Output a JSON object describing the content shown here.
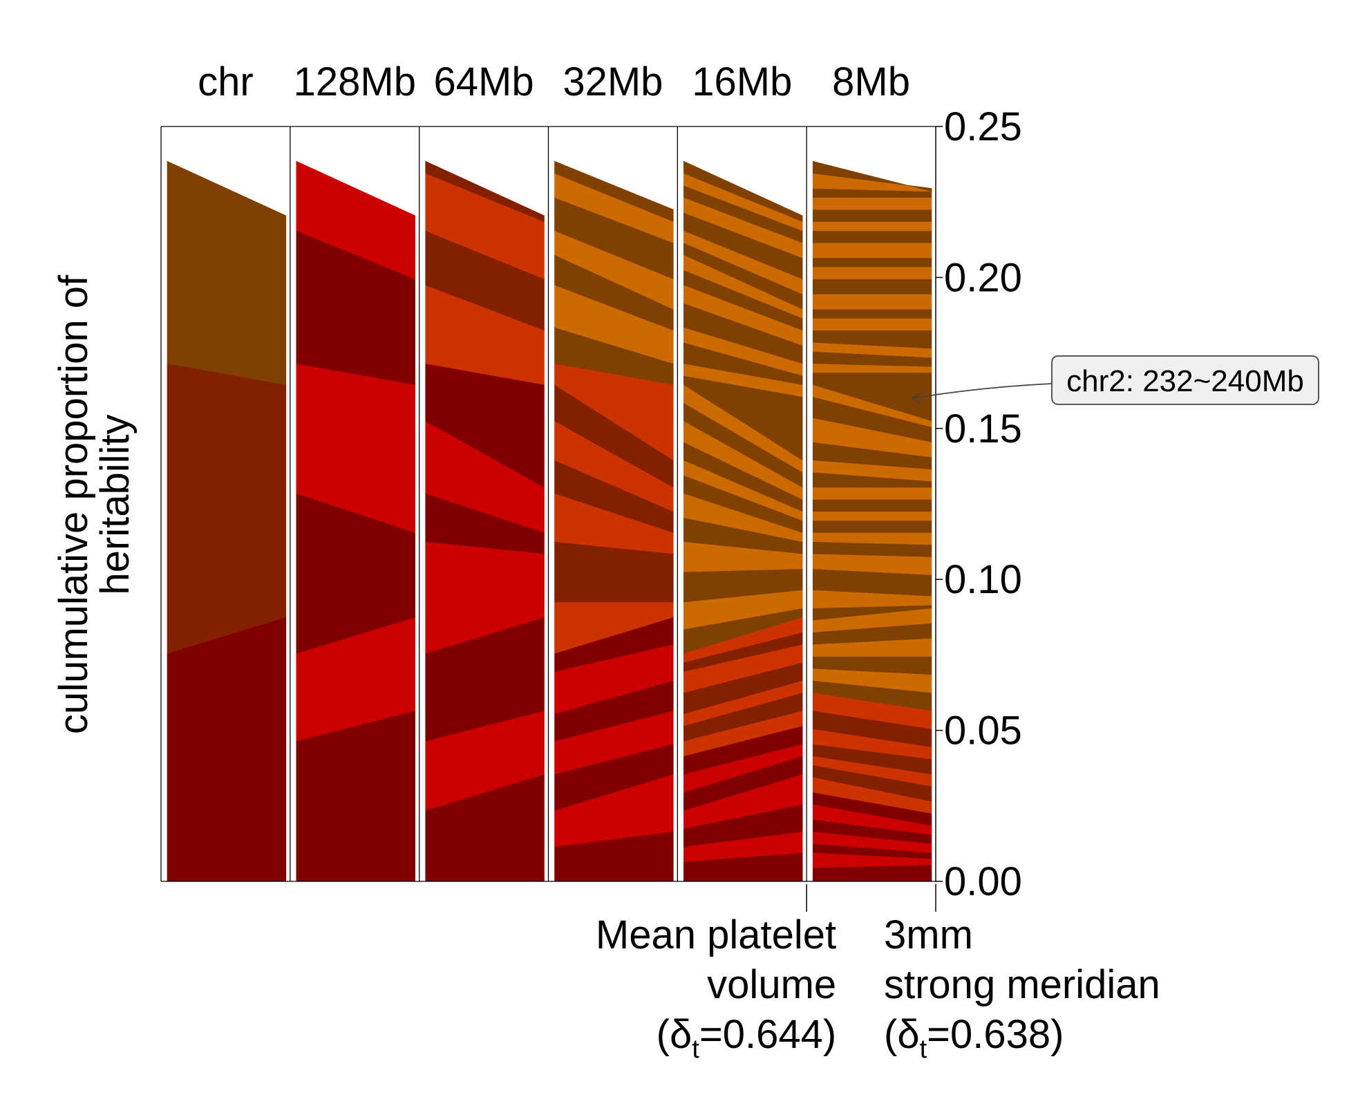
{
  "chart_data": {
    "type": "area",
    "title": "",
    "ylabel_lines": [
      "culumulative proportion of",
      "heritability"
    ],
    "columns": [
      "chr",
      "128Mb",
      "64Mb",
      "32Mb",
      "16Mb",
      "8Mb"
    ],
    "yticks": [
      "0.00",
      "0.05",
      "0.10",
      "0.15",
      "0.20",
      "0.25"
    ],
    "ylim": [
      0,
      0.25
    ],
    "colors": {
      "red_dark": "#800000",
      "red_light": "#cc0000",
      "rust_dark": "#832000",
      "rust_light": "#cc3300",
      "brown_dark": "#804000",
      "orange_light": "#cc6a00"
    },
    "traits": [
      {
        "name": "Mean platelet volume",
        "lines": [
          "Mean platelet",
          "volume"
        ],
        "delta_prefix": "(δ",
        "delta_sub": "t",
        "delta_suffix": "=0.644)"
      },
      {
        "name": "3mm strong meridian",
        "lines": [
          "3mm",
          "strong meridian"
        ],
        "delta_prefix": "(δ",
        "delta_sub": "t",
        "delta_suffix": "=0.638)"
      }
    ],
    "annotation": {
      "text": "chr2: 232~240Mb",
      "value": 0.16
    },
    "boundaries": [
      [
        [
          0.0755,
          0.0875
        ],
        [
          0.1715,
          0.1645
        ],
        [
          0.2385,
          0.2205
        ]
      ],
      [
        [
          0.0465,
          0.0565
        ],
        [
          0.0755,
          0.0875
        ],
        [
          0.1285,
          0.1155
        ],
        [
          0.1715,
          0.1645
        ],
        [
          0.2155,
          0.1995
        ],
        [
          0.2385,
          0.2205
        ]
      ],
      [
        [
          0.0235,
          0.0355
        ],
        [
          0.0465,
          0.0565
        ],
        [
          0.0755,
          0.0875
        ],
        [
          0.1125,
          0.1085
        ],
        [
          0.1285,
          0.1155
        ],
        [
          0.1525,
          0.1305
        ],
        [
          0.1715,
          0.1645
        ],
        [
          0.1975,
          0.1825
        ],
        [
          0.2155,
          0.1995
        ],
        [
          0.2345,
          0.2185
        ],
        [
          0.2385,
          0.2205
        ]
      ],
      [
        [
          0.0115,
          0.0165
        ],
        [
          0.0235,
          0.0355
        ],
        [
          0.0355,
          0.0455
        ],
        [
          0.0465,
          0.0565
        ],
        [
          0.0555,
          0.0665
        ],
        [
          0.0695,
          0.0785
        ],
        [
          0.0755,
          0.0875
        ],
        [
          0.0925,
          0.0925
        ],
        [
          0.1125,
          0.1085
        ],
        [
          0.1285,
          0.1155
        ],
        [
          0.1395,
          0.1225
        ],
        [
          0.1525,
          0.1305
        ],
        [
          0.1645,
          0.1395
        ],
        [
          0.1715,
          0.1645
        ],
        [
          0.1835,
          0.1715
        ],
        [
          0.1975,
          0.1825
        ],
        [
          0.2075,
          0.1895
        ],
        [
          0.2155,
          0.1995
        ],
        [
          0.2265,
          0.2115
        ],
        [
          0.2345,
          0.2185
        ],
        [
          0.2385,
          0.2225
        ]
      ],
      [
        [
          0.0065,
          0.0095
        ],
        [
          0.0115,
          0.0165
        ],
        [
          0.0175,
          0.0255
        ],
        [
          0.0235,
          0.0355
        ],
        [
          0.0295,
          0.0415
        ],
        [
          0.0355,
          0.0455
        ],
        [
          0.0415,
          0.0515
        ],
        [
          0.0465,
          0.0565
        ],
        [
          0.0515,
          0.0625
        ],
        [
          0.0555,
          0.0665
        ],
        [
          0.0625,
          0.0725
        ],
        [
          0.0695,
          0.0785
        ],
        [
          0.0725,
          0.0825
        ],
        [
          0.0755,
          0.0875
        ],
        [
          0.0835,
          0.0905
        ],
        [
          0.0925,
          0.0965
        ],
        [
          0.1025,
          0.1035
        ],
        [
          0.1125,
          0.1085
        ],
        [
          0.1205,
          0.1125
        ],
        [
          0.1285,
          0.1155
        ],
        [
          0.1345,
          0.1195
        ],
        [
          0.1395,
          0.1225
        ],
        [
          0.1455,
          0.1265
        ],
        [
          0.1525,
          0.1305
        ],
        [
          0.1585,
          0.1355
        ],
        [
          0.1645,
          0.1395
        ],
        [
          0.1675,
          0.1605
        ],
        [
          0.1715,
          0.1645
        ],
        [
          0.1785,
          0.1675
        ],
        [
          0.1835,
          0.1715
        ],
        [
          0.1915,
          0.1775
        ],
        [
          0.1975,
          0.1825
        ],
        [
          0.2025,
          0.1865
        ],
        [
          0.2075,
          0.1895
        ],
        [
          0.2115,
          0.1945
        ],
        [
          0.2155,
          0.1995
        ],
        [
          0.2215,
          0.2065
        ],
        [
          0.2265,
          0.2115
        ],
        [
          0.2305,
          0.2155
        ],
        [
          0.2345,
          0.2185
        ],
        [
          0.2385,
          0.2205
        ]
      ],
      [
        [
          0.0045,
          0.0055
        ],
        [
          0.0095,
          0.0075
        ],
        [
          0.0125,
          0.0095
        ],
        [
          0.0165,
          0.0125
        ],
        [
          0.0205,
          0.0155
        ],
        [
          0.0255,
          0.0185
        ],
        [
          0.0295,
          0.0225
        ],
        [
          0.0345,
          0.0265
        ],
        [
          0.0385,
          0.0315
        ],
        [
          0.0415,
          0.0355
        ],
        [
          0.0455,
          0.0405
        ],
        [
          0.0505,
          0.0445
        ],
        [
          0.0565,
          0.0505
        ],
        [
          0.0625,
          0.0565
        ],
        [
          0.0665,
          0.0625
        ],
        [
          0.0705,
          0.0685
        ],
        [
          0.0745,
          0.0745
        ],
        [
          0.0785,
          0.0805
        ],
        [
          0.0825,
          0.0855
        ],
        [
          0.0865,
          0.0905
        ],
        [
          0.0905,
          0.0915
        ],
        [
          0.0965,
          0.0945
        ],
        [
          0.1035,
          0.1015
        ],
        [
          0.1085,
          0.1075
        ],
        [
          0.1125,
          0.1115
        ],
        [
          0.1155,
          0.1155
        ],
        [
          0.1195,
          0.1195
        ],
        [
          0.1225,
          0.1225
        ],
        [
          0.1265,
          0.1265
        ],
        [
          0.1305,
          0.1305
        ],
        [
          0.1355,
          0.1325
        ],
        [
          0.1395,
          0.1365
        ],
        [
          0.1455,
          0.1405
        ],
        [
          0.1535,
          0.1455
        ],
        [
          0.1605,
          0.1505
        ],
        [
          0.1645,
          0.1525
        ],
        [
          0.1685,
          0.1685
        ],
        [
          0.1715,
          0.1705
        ],
        [
          0.1755,
          0.1735
        ],
        [
          0.1785,
          0.1765
        ],
        [
          0.1825,
          0.1825
        ],
        [
          0.1865,
          0.1865
        ],
        [
          0.1895,
          0.1895
        ],
        [
          0.1945,
          0.1945
        ],
        [
          0.1995,
          0.1995
        ],
        [
          0.2035,
          0.2035
        ],
        [
          0.2065,
          0.2065
        ],
        [
          0.2115,
          0.2115
        ],
        [
          0.2155,
          0.2155
        ],
        [
          0.2185,
          0.2185
        ],
        [
          0.2225,
          0.2225
        ],
        [
          0.2265,
          0.2265
        ],
        [
          0.2295,
          0.2285
        ],
        [
          0.2345,
          0.2295
        ],
        [
          0.2385,
          0.2285
        ]
      ]
    ]
  }
}
